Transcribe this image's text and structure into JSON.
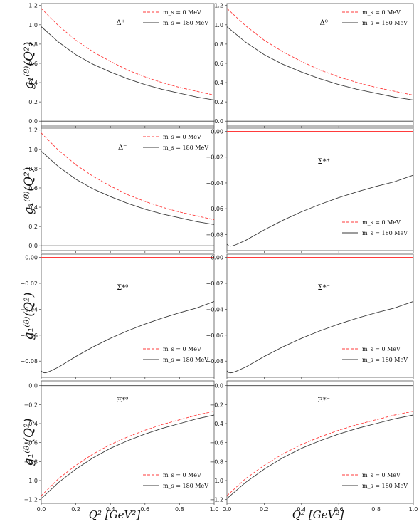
{
  "figure": {
    "ylabel": "g₁⁽⁸⁾(Q²)",
    "xlabel": "Q² [GeV²]",
    "legend": [
      "m_s = 0 MeV",
      "m_s = 180 MeV"
    ]
  },
  "colors": {
    "ms0": "#ff3b3b",
    "ms180": "#3a3a3a",
    "frame": "#555555"
  },
  "chart_data": [
    {
      "type": "line",
      "panel_label": "Δ⁺⁺",
      "ylim": [
        -0.05,
        1.22
      ],
      "yticks": [
        0.0,
        0.2,
        0.4,
        0.6,
        0.8,
        1.0,
        1.2
      ],
      "xticks": [
        0.0,
        0.2,
        0.4,
        0.6,
        0.8,
        1.0
      ],
      "legend_position": "top-right",
      "series": [
        {
          "name": "m_s = 0 MeV",
          "style": "dashed",
          "x": [
            0.0,
            0.1,
            0.2,
            0.3,
            0.4,
            0.5,
            0.6,
            0.7,
            0.8,
            0.9,
            1.0
          ],
          "values": [
            1.17,
            0.99,
            0.84,
            0.72,
            0.62,
            0.53,
            0.46,
            0.4,
            0.35,
            0.31,
            0.27
          ]
        },
        {
          "name": "m_s = 180 MeV",
          "style": "solid",
          "x": [
            0.0,
            0.1,
            0.2,
            0.3,
            0.4,
            0.5,
            0.6,
            0.7,
            0.8,
            0.9,
            1.0
          ],
          "values": [
            0.98,
            0.82,
            0.69,
            0.59,
            0.51,
            0.44,
            0.38,
            0.33,
            0.29,
            0.25,
            0.22
          ]
        },
        {
          "name": "",
          "style": "zero",
          "x": [
            0.0,
            1.0
          ],
          "values": [
            0.0,
            0.0
          ]
        }
      ]
    },
    {
      "type": "line",
      "panel_label": "Δ⁰",
      "ylim": [
        -0.05,
        1.22
      ],
      "yticks": [
        0.0,
        0.2,
        0.4,
        0.6,
        0.8,
        1.0,
        1.2
      ],
      "xticks": [
        0.0,
        0.2,
        0.4,
        0.6,
        0.8,
        1.0
      ],
      "legend_position": "top-right",
      "series": [
        {
          "name": "m_s = 0 MeV",
          "style": "dashed",
          "x": [
            0.0,
            0.1,
            0.2,
            0.3,
            0.4,
            0.5,
            0.6,
            0.7,
            0.8,
            0.9,
            1.0
          ],
          "values": [
            1.17,
            0.99,
            0.84,
            0.72,
            0.62,
            0.53,
            0.46,
            0.4,
            0.35,
            0.31,
            0.27
          ]
        },
        {
          "name": "m_s = 180 MeV",
          "style": "solid",
          "x": [
            0.0,
            0.1,
            0.2,
            0.3,
            0.4,
            0.5,
            0.6,
            0.7,
            0.8,
            0.9,
            1.0
          ],
          "values": [
            0.98,
            0.82,
            0.69,
            0.59,
            0.51,
            0.44,
            0.38,
            0.33,
            0.29,
            0.25,
            0.22
          ]
        },
        {
          "name": "",
          "style": "zero",
          "x": [
            0.0,
            1.0
          ],
          "values": [
            0.0,
            0.0
          ]
        }
      ]
    },
    {
      "type": "line",
      "panel_label": "Δ⁻",
      "ylim": [
        -0.05,
        1.22
      ],
      "yticks": [
        0.0,
        0.2,
        0.4,
        0.6,
        0.8,
        1.0,
        1.2
      ],
      "xticks": [
        0.0,
        0.2,
        0.4,
        0.6,
        0.8,
        1.0
      ],
      "legend_position": "top-right",
      "series": [
        {
          "name": "m_s = 0 MeV",
          "style": "dashed",
          "x": [
            0.0,
            0.1,
            0.2,
            0.3,
            0.4,
            0.5,
            0.6,
            0.7,
            0.8,
            0.9,
            1.0
          ],
          "values": [
            1.17,
            0.99,
            0.84,
            0.72,
            0.62,
            0.53,
            0.46,
            0.4,
            0.35,
            0.31,
            0.27
          ]
        },
        {
          "name": "m_s = 180 MeV",
          "style": "solid",
          "x": [
            0.0,
            0.1,
            0.2,
            0.3,
            0.4,
            0.5,
            0.6,
            0.7,
            0.8,
            0.9,
            1.0
          ],
          "values": [
            0.98,
            0.82,
            0.69,
            0.59,
            0.51,
            0.44,
            0.38,
            0.33,
            0.29,
            0.25,
            0.22
          ]
        },
        {
          "name": "",
          "style": "zero",
          "x": [
            0.0,
            1.0
          ],
          "values": [
            0.0,
            0.0
          ]
        }
      ]
    },
    {
      "type": "line",
      "panel_label": "Σ*⁺",
      "ylim": [
        -0.0925,
        0.0025
      ],
      "yticks": [
        0.0,
        -0.02,
        -0.04,
        -0.06,
        -0.08
      ],
      "xticks": [
        0.0,
        0.2,
        0.4,
        0.6,
        0.8,
        1.0
      ],
      "legend_position": "bottom-right",
      "series": [
        {
          "name": "m_s = 0 MeV",
          "style": "dashed",
          "x": [
            0.0,
            1.0
          ],
          "values": [
            0.0,
            0.0
          ]
        },
        {
          "name": "m_s = 180 MeV",
          "style": "solid",
          "x": [
            0.0,
            0.01,
            0.02,
            0.03,
            0.05,
            0.1,
            0.2,
            0.3,
            0.4,
            0.5,
            0.6,
            0.7,
            0.8,
            0.9,
            1.0
          ],
          "values": [
            -0.0875,
            -0.0888,
            -0.089,
            -0.0888,
            -0.0878,
            -0.0846,
            -0.0764,
            -0.069,
            -0.0624,
            -0.0566,
            -0.0514,
            -0.0468,
            -0.0427,
            -0.039,
            -0.034
          ]
        }
      ]
    },
    {
      "type": "line",
      "panel_label": "Σ*⁰",
      "ylim": [
        -0.0925,
        0.0025
      ],
      "yticks": [
        0.0,
        -0.02,
        -0.04,
        -0.06,
        -0.08
      ],
      "xticks": [
        0.0,
        0.2,
        0.4,
        0.6,
        0.8,
        1.0
      ],
      "legend_position": "bottom-right",
      "series": [
        {
          "name": "m_s = 0 MeV",
          "style": "dashed",
          "x": [
            0.0,
            1.0
          ],
          "values": [
            0.0,
            0.0
          ]
        },
        {
          "name": "m_s = 180 MeV",
          "style": "solid",
          "x": [
            0.0,
            0.01,
            0.02,
            0.03,
            0.05,
            0.1,
            0.2,
            0.3,
            0.4,
            0.5,
            0.6,
            0.7,
            0.8,
            0.9,
            1.0
          ],
          "values": [
            -0.0875,
            -0.0888,
            -0.089,
            -0.0888,
            -0.0878,
            -0.0846,
            -0.0764,
            -0.069,
            -0.0624,
            -0.0566,
            -0.0514,
            -0.0468,
            -0.0427,
            -0.039,
            -0.034
          ]
        }
      ]
    },
    {
      "type": "line",
      "panel_label": "Σ*⁻",
      "ylim": [
        -0.0925,
        0.0025
      ],
      "yticks": [
        0.0,
        -0.02,
        -0.04,
        -0.06,
        -0.08
      ],
      "xticks": [
        0.0,
        0.2,
        0.4,
        0.6,
        0.8,
        1.0
      ],
      "legend_position": "bottom-right",
      "series": [
        {
          "name": "m_s = 0 MeV",
          "style": "dashed",
          "x": [
            0.0,
            1.0
          ],
          "values": [
            0.0,
            0.0
          ]
        },
        {
          "name": "m_s = 180 MeV",
          "style": "solid",
          "x": [
            0.0,
            0.01,
            0.02,
            0.03,
            0.05,
            0.1,
            0.2,
            0.3,
            0.4,
            0.5,
            0.6,
            0.7,
            0.8,
            0.9,
            1.0
          ],
          "values": [
            -0.0875,
            -0.0888,
            -0.089,
            -0.0888,
            -0.0878,
            -0.0846,
            -0.0764,
            -0.069,
            -0.0624,
            -0.0566,
            -0.0514,
            -0.0468,
            -0.0427,
            -0.039,
            -0.034
          ]
        }
      ]
    },
    {
      "type": "line",
      "panel_label": "Ξ*⁰",
      "ylim": [
        -1.24,
        0.05
      ],
      "yticks": [
        0.0,
        -0.2,
        -0.4,
        -0.6,
        -0.8,
        -1.0,
        -1.2
      ],
      "xticks": [
        0.0,
        0.2,
        0.4,
        0.6,
        0.8,
        1.0
      ],
      "legend_position": "bottom-right",
      "series": [
        {
          "name": "m_s = 0 MeV",
          "style": "dashed",
          "x": [
            0.0,
            0.1,
            0.2,
            0.3,
            0.4,
            0.5,
            0.6,
            0.7,
            0.8,
            0.9,
            1.0
          ],
          "values": [
            -1.16,
            -0.98,
            -0.84,
            -0.72,
            -0.62,
            -0.54,
            -0.47,
            -0.41,
            -0.36,
            -0.31,
            -0.27
          ]
        },
        {
          "name": "m_s = 180 MeV",
          "style": "solid",
          "x": [
            0.0,
            0.1,
            0.2,
            0.3,
            0.4,
            0.5,
            0.6,
            0.7,
            0.8,
            0.9,
            1.0
          ],
          "values": [
            -1.19,
            -1.02,
            -0.88,
            -0.76,
            -0.66,
            -0.58,
            -0.51,
            -0.45,
            -0.4,
            -0.35,
            -0.31
          ]
        },
        {
          "name": "",
          "style": "zero",
          "x": [
            0.0,
            1.0
          ],
          "values": [
            0.0,
            0.0
          ]
        }
      ]
    },
    {
      "type": "line",
      "panel_label": "Ξ*⁻",
      "ylim": [
        -1.24,
        0.05
      ],
      "yticks": [
        0.0,
        -0.2,
        -0.4,
        -0.6,
        -0.8,
        -1.0,
        -1.2
      ],
      "xticks": [
        0.0,
        0.2,
        0.4,
        0.6,
        0.8,
        1.0
      ],
      "legend_position": "bottom-right",
      "series": [
        {
          "name": "m_s = 0 MeV",
          "style": "dashed",
          "x": [
            0.0,
            0.1,
            0.2,
            0.3,
            0.4,
            0.5,
            0.6,
            0.7,
            0.8,
            0.9,
            1.0
          ],
          "values": [
            -1.16,
            -0.98,
            -0.84,
            -0.72,
            -0.62,
            -0.54,
            -0.47,
            -0.41,
            -0.36,
            -0.31,
            -0.27
          ]
        },
        {
          "name": "m_s = 180 MeV",
          "style": "solid",
          "x": [
            0.0,
            0.1,
            0.2,
            0.3,
            0.4,
            0.5,
            0.6,
            0.7,
            0.8,
            0.9,
            1.0
          ],
          "values": [
            -1.19,
            -1.02,
            -0.88,
            -0.76,
            -0.66,
            -0.58,
            -0.51,
            -0.45,
            -0.4,
            -0.35,
            -0.31
          ]
        },
        {
          "name": "",
          "style": "zero",
          "x": [
            0.0,
            1.0
          ],
          "values": [
            0.0,
            0.0
          ]
        }
      ]
    }
  ]
}
